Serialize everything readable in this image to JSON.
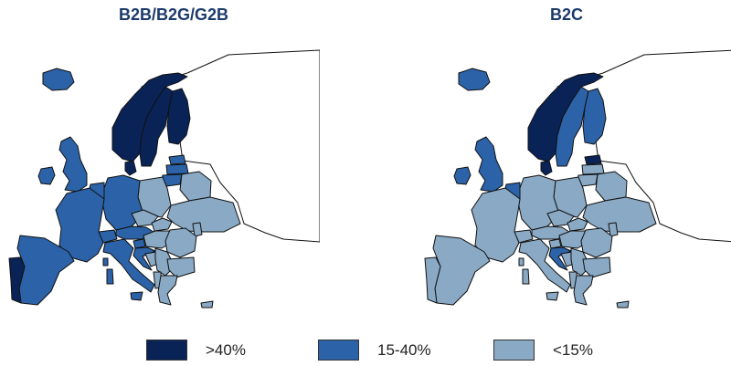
{
  "maps": [
    {
      "title": "B2B/B2G/G2B",
      "regions": {
        "iceland": "mid",
        "ireland": "mid",
        "uk": "mid",
        "norway": "high",
        "sweden": "high",
        "finland": "high",
        "denmark": "high",
        "estonia": "mid",
        "latvia": "mid",
        "lithuania": "mid",
        "france": "mid",
        "benelux": "mid",
        "germany": "mid",
        "austria": "mid",
        "switzerland": "mid",
        "spain": "mid",
        "portugal": "high",
        "italy": "mid",
        "croatia": "mid",
        "slovenia": "mid",
        "poland": "low",
        "czechia": "low",
        "slovakia": "low",
        "hungary": "low",
        "romania": "low",
        "bulgaria": "low",
        "serbia": "low",
        "bosnia": "low",
        "albania": "low",
        "greece": "low",
        "ukraine": "low",
        "belarus": "low",
        "moldova": "low",
        "cyprus": "low"
      }
    },
    {
      "title": "B2C",
      "regions": {
        "iceland": "mid",
        "ireland": "mid",
        "uk": "mid",
        "norway": "high",
        "sweden": "mid",
        "finland": "mid",
        "denmark": "high",
        "estonia": "high",
        "latvia": "low",
        "lithuania": "low",
        "france": "low",
        "benelux": "mid",
        "germany": "low",
        "austria": "low",
        "switzerland": "low",
        "spain": "low",
        "portugal": "low",
        "italy": "low",
        "croatia": "mid",
        "slovenia": "low",
        "poland": "low",
        "czechia": "low",
        "slovakia": "low",
        "hungary": "low",
        "romania": "low",
        "bulgaria": "low",
        "serbia": "low",
        "bosnia": "low",
        "albania": "low",
        "greece": "low",
        "ukraine": "low",
        "belarus": "low",
        "moldova": "low",
        "cyprus": "low"
      }
    }
  ],
  "legend": [
    {
      "key": "high",
      "label": ">40%",
      "color": "#0a2357"
    },
    {
      "key": "mid",
      "label": "15-40%",
      "color": "#2b62a8"
    },
    {
      "key": "low",
      "label": "<15%",
      "color": "#89a9c5"
    }
  ]
}
